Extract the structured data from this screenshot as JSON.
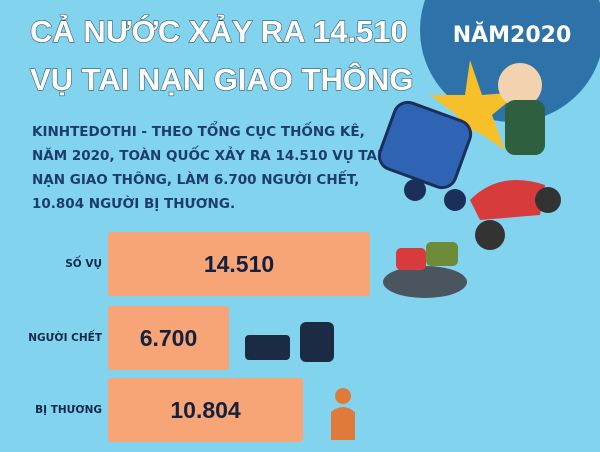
{
  "chart_data": {
    "type": "bar",
    "title": [
      "CẢ NƯỚC XẢY RA 14.510",
      "VỤ TAI NẠN GIAO THÔNG"
    ],
    "badge": "NĂM2020",
    "text": [
      "KINHTEDOTHI - THEO TỔNG CỤC THỐNG KÊ,",
      "NĂM 2020, TOÀN QUỐC XẢY RA 14.510 VỤ TAI",
      "NẠN GIAO THÔNG, LÀM 6.700 NGƯỜI CHẾT,",
      "10.804 NGƯỜI BỊ THƯƠNG."
    ],
    "categories": [
      "SỐ VỤ",
      "NGƯỜI CHẾT",
      "BỊ THƯƠNG"
    ],
    "values": [
      14510,
      6700,
      10804
    ],
    "value_labels": [
      "14.510",
      "6.700",
      "10.804"
    ],
    "color": "#f7a476"
  }
}
